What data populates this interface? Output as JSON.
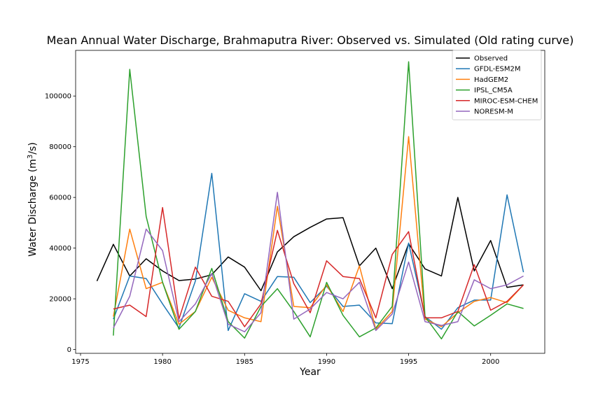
{
  "chart_data": {
    "type": "line",
    "title": "Mean Annual Water Discharge, Brahmaputra River: Observed vs. Simulated (Old rating curve)",
    "xlabel": "Year",
    "ylabel_main": "Water Discharge (m",
    "ylabel_sup": "3",
    "ylabel_end": "/s)",
    "xlim": [
      1974.7,
      2003.3
    ],
    "ylim": [
      -1500,
      118000
    ],
    "x_ticks": [
      1975,
      1980,
      1985,
      1990,
      1995,
      2000
    ],
    "y_ticks": [
      0,
      20000,
      40000,
      60000,
      80000,
      100000
    ],
    "grid": false,
    "legend_position": "top-right",
    "series": [
      {
        "name": "Observed",
        "color": "#000000",
        "x": [
          1976,
          1977,
          1978,
          1979,
          1980,
          1981,
          1982,
          1983,
          1984,
          1985,
          1986,
          1987,
          1988,
          1989,
          1990,
          1991,
          1992,
          1993,
          1994,
          1995,
          1996,
          1997,
          1998,
          1999,
          2000,
          2001,
          2002
        ],
        "values": [
          27000,
          41500,
          29000,
          35800,
          31000,
          27200,
          27800,
          29500,
          36500,
          32500,
          23200,
          38500,
          44500,
          48200,
          51500,
          52000,
          33000,
          40000,
          24000,
          41800,
          31800,
          29000,
          60000,
          31000,
          43000,
          24500,
          25500
        ]
      },
      {
        "name": "GFDL-ESM2M",
        "color": "#1f77b4",
        "x": [
          1977,
          1978,
          1979,
          1980,
          1981,
          1982,
          1983,
          1984,
          1985,
          1986,
          1987,
          1988,
          1989,
          1990,
          1991,
          1992,
          1993,
          1994,
          1995,
          1996,
          1997,
          1998,
          1999,
          2000,
          2001,
          2002
        ],
        "values": [
          12000,
          29000,
          28000,
          18000,
          8500,
          27000,
          69500,
          7500,
          22000,
          19000,
          28800,
          28500,
          18500,
          25000,
          17000,
          17500,
          10500,
          10200,
          42000,
          13000,
          8000,
          16500,
          19500,
          19500,
          61000,
          30500
        ]
      },
      {
        "name": "HadGEM2",
        "color": "#ff7f0e",
        "x": [
          1977,
          1978,
          1979,
          1980,
          1981,
          1982,
          1983,
          1984,
          1985,
          1986,
          1987,
          1988,
          1989,
          1990,
          1991,
          1992,
          1993,
          1994,
          1995,
          1996,
          1997,
          1998,
          1999,
          2000,
          2001,
          2002
        ],
        "values": [
          13000,
          47500,
          24000,
          26500,
          10000,
          15000,
          28500,
          15500,
          12500,
          11000,
          56500,
          17000,
          16500,
          25500,
          15000,
          33000,
          8000,
          15000,
          84000,
          12000,
          9000,
          14500,
          19000,
          20500,
          18500,
          25500
        ]
      },
      {
        "name": "IPSL_CM5A",
        "color": "#2ca02c",
        "x": [
          1977,
          1978,
          1979,
          1980,
          1981,
          1982,
          1983,
          1984,
          1985,
          1986,
          1987,
          1988,
          1989,
          1990,
          1991,
          1992,
          1993,
          1994,
          1995,
          1996,
          1997,
          1998,
          1999,
          2000,
          2001,
          2002
        ],
        "values": [
          5500,
          110500,
          52500,
          26500,
          8000,
          15000,
          32000,
          11000,
          4500,
          17000,
          24000,
          15000,
          5000,
          26500,
          13500,
          5000,
          8500,
          17000,
          113500,
          13000,
          4200,
          15000,
          9300,
          13500,
          18000,
          16200
        ]
      },
      {
        "name": "MIROC-ESM-CHEM",
        "color": "#d62728",
        "x": [
          1977,
          1978,
          1979,
          1980,
          1981,
          1982,
          1983,
          1984,
          1985,
          1986,
          1987,
          1988,
          1989,
          1990,
          1991,
          1992,
          1993,
          1994,
          1995,
          1996,
          1997,
          1998,
          1999,
          2000,
          2001,
          2002
        ],
        "values": [
          16000,
          17500,
          13000,
          56000,
          12000,
          32500,
          21000,
          19000,
          9000,
          18000,
          47000,
          26000,
          14500,
          35000,
          28800,
          28000,
          12500,
          37500,
          46500,
          12500,
          12500,
          15000,
          33500,
          15500,
          19000,
          25500
        ]
      },
      {
        "name": "NORESM-M",
        "color": "#9467bd",
        "x": [
          1977,
          1978,
          1979,
          1980,
          1981,
          1982,
          1983,
          1984,
          1985,
          1986,
          1987,
          1988,
          1989,
          1990,
          1991,
          1992,
          1993,
          1994,
          1995,
          1996,
          1997,
          1998,
          1999,
          2000,
          2001,
          2002
        ],
        "values": [
          8500,
          21000,
          47500,
          39000,
          11000,
          18000,
          30000,
          10000,
          7000,
          14500,
          62000,
          12000,
          16000,
          22500,
          20000,
          26500,
          7500,
          14000,
          34500,
          11000,
          9500,
          11000,
          27500,
          24000,
          25500,
          29000
        ]
      }
    ]
  }
}
